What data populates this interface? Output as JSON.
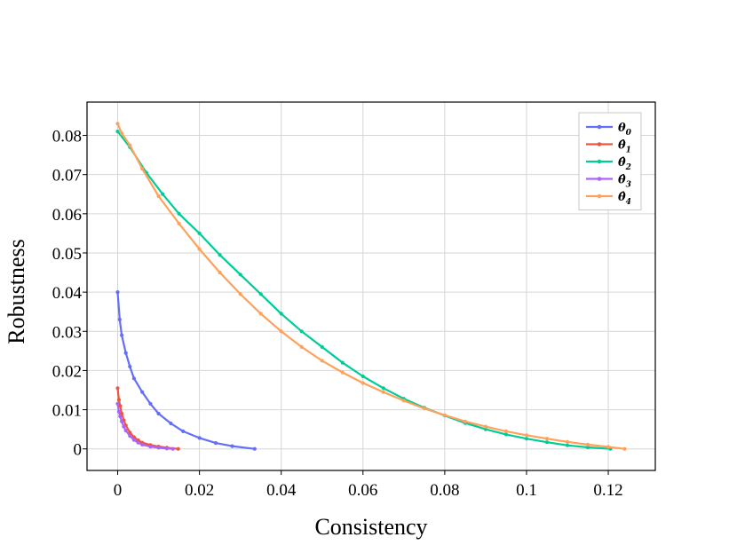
{
  "chart_data": {
    "type": "line",
    "title": "",
    "xlabel": "Consistency",
    "ylabel": "Robustness",
    "xlim": [
      -0.0075,
      0.1315
    ],
    "ylim": [
      -0.0055,
      0.0885
    ],
    "xticks": [
      0,
      0.02,
      0.04,
      0.06,
      0.08,
      0.1,
      0.12
    ],
    "xtick_labels": [
      "0",
      "0.02",
      "0.04",
      "0.06",
      "0.08",
      "0.1",
      "0.12"
    ],
    "yticks": [
      0,
      0.01,
      0.02,
      0.03,
      0.04,
      0.05,
      0.06,
      0.07,
      0.08
    ],
    "ytick_labels": [
      "0",
      "0.01",
      "0.02",
      "0.03",
      "0.04",
      "0.05",
      "0.06",
      "0.07",
      "0.08"
    ],
    "grid": true,
    "legend_position": "top-right",
    "series": [
      {
        "name": "θ0",
        "base": "θ",
        "sub": "0",
        "hat": false,
        "color": "#636efa",
        "x": [
          0,
          0.0005,
          0.001,
          0.002,
          0.003,
          0.004,
          0.006,
          0.008,
          0.01,
          0.013,
          0.016,
          0.02,
          0.024,
          0.028,
          0.0335
        ],
        "y": [
          0.04,
          0.033,
          0.029,
          0.0245,
          0.021,
          0.018,
          0.0145,
          0.0115,
          0.009,
          0.0065,
          0.0045,
          0.0028,
          0.0015,
          0.0007,
          0.0
        ]
      },
      {
        "name": "θ̂1",
        "base": "θ",
        "sub": "1",
        "hat": true,
        "color": "#ef553b",
        "x": [
          0,
          0.0003,
          0.0006,
          0.001,
          0.0015,
          0.002,
          0.003,
          0.004,
          0.005,
          0.006,
          0.008,
          0.01,
          0.012,
          0.0148
        ],
        "y": [
          0.0155,
          0.0125,
          0.011,
          0.009,
          0.0073,
          0.006,
          0.0042,
          0.003,
          0.0022,
          0.0016,
          0.001,
          0.0006,
          0.0003,
          0.0
        ]
      },
      {
        "name": "θ̂2",
        "base": "θ",
        "sub": "2",
        "hat": true,
        "color": "#00cc96",
        "x": [
          0,
          0.003,
          0.007,
          0.011,
          0.015,
          0.02,
          0.025,
          0.03,
          0.035,
          0.04,
          0.045,
          0.05,
          0.055,
          0.06,
          0.065,
          0.07,
          0.075,
          0.08,
          0.085,
          0.09,
          0.095,
          0.1,
          0.105,
          0.11,
          0.115,
          0.1205
        ],
        "y": [
          0.081,
          0.077,
          0.0705,
          0.065,
          0.06,
          0.055,
          0.0495,
          0.0445,
          0.0395,
          0.0345,
          0.03,
          0.026,
          0.022,
          0.0185,
          0.0155,
          0.0128,
          0.0105,
          0.0085,
          0.0066,
          0.005,
          0.0037,
          0.0026,
          0.0017,
          0.0009,
          0.0004,
          0.0
        ]
      },
      {
        "name": "θ̂3",
        "base": "θ",
        "sub": "3",
        "hat": true,
        "color": "#ab63fa",
        "x": [
          0,
          0.0003,
          0.0006,
          0.001,
          0.0015,
          0.002,
          0.003,
          0.004,
          0.005,
          0.006,
          0.008,
          0.01,
          0.012,
          0.0135
        ],
        "y": [
          0.0115,
          0.0095,
          0.0083,
          0.007,
          0.0057,
          0.0047,
          0.0033,
          0.0023,
          0.0016,
          0.0011,
          0.0006,
          0.0003,
          0.0001,
          0.0
        ]
      },
      {
        "name": "θ̂4",
        "base": "θ",
        "sub": "4",
        "hat": true,
        "color": "#ffa15a",
        "x": [
          0,
          0.001,
          0.003,
          0.006,
          0.01,
          0.015,
          0.02,
          0.025,
          0.03,
          0.035,
          0.04,
          0.045,
          0.05,
          0.055,
          0.06,
          0.065,
          0.07,
          0.075,
          0.08,
          0.085,
          0.09,
          0.095,
          0.1,
          0.105,
          0.11,
          0.115,
          0.12,
          0.124
        ],
        "y": [
          0.083,
          0.0805,
          0.0775,
          0.0715,
          0.0645,
          0.0575,
          0.051,
          0.045,
          0.0395,
          0.0345,
          0.03,
          0.026,
          0.0225,
          0.0195,
          0.0168,
          0.0145,
          0.0123,
          0.0103,
          0.0086,
          0.007,
          0.0057,
          0.0045,
          0.0035,
          0.0026,
          0.0018,
          0.0011,
          0.0005,
          0.0
        ]
      }
    ]
  }
}
